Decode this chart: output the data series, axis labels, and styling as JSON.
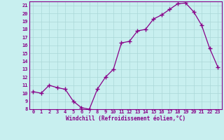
{
  "x": [
    0,
    1,
    2,
    3,
    4,
    5,
    6,
    7,
    8,
    9,
    10,
    11,
    12,
    13,
    14,
    15,
    16,
    17,
    18,
    19,
    20,
    21,
    22,
    23
  ],
  "y": [
    10.2,
    10.0,
    11.0,
    10.7,
    10.5,
    9.0,
    8.2,
    8.0,
    10.5,
    12.0,
    13.0,
    16.3,
    16.5,
    17.8,
    18.0,
    19.3,
    19.8,
    20.5,
    21.2,
    21.3,
    20.2,
    18.5,
    15.6,
    13.3
  ],
  "line_color": "#880088",
  "marker": "+",
  "marker_size": 4,
  "marker_lw": 1.0,
  "line_width": 0.9,
  "bg_color": "#c8efef",
  "grid_color": "#aad8d8",
  "ylim": [
    8,
    21.5
  ],
  "xlim": [
    -0.5,
    23.5
  ],
  "yticks": [
    8,
    9,
    10,
    11,
    12,
    13,
    14,
    15,
    16,
    17,
    18,
    19,
    20,
    21
  ],
  "xticks": [
    0,
    1,
    2,
    3,
    4,
    5,
    6,
    7,
    8,
    9,
    10,
    11,
    12,
    13,
    14,
    15,
    16,
    17,
    18,
    19,
    20,
    21,
    22,
    23
  ],
  "xlabel": "Windchill (Refroidissement éolien,°C)",
  "tick_color": "#880088",
  "label_color": "#880088",
  "axis_color": "#880088",
  "font_name": "monospace",
  "tick_fontsize": 5,
  "label_fontsize": 5.5
}
